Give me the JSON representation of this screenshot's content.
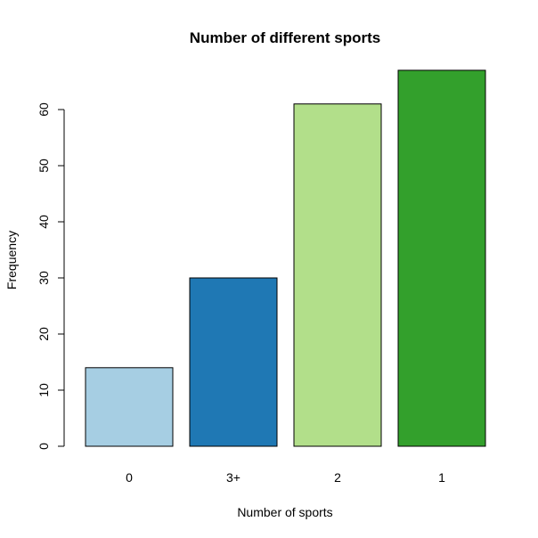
{
  "chart_data": {
    "type": "bar",
    "title": "Number of different sports",
    "xlabel": "Number of sports",
    "ylabel": "Frequency",
    "categories": [
      "0",
      "3+",
      "2",
      "1"
    ],
    "values": [
      14,
      30,
      61,
      67
    ],
    "colors": [
      "#a6cee3",
      "#1f78b4",
      "#b2df8a",
      "#33a02c"
    ],
    "ylim": [
      0,
      70
    ],
    "yticks": [
      0,
      10,
      20,
      30,
      40,
      50,
      60
    ],
    "grid": false,
    "legend": "none"
  }
}
